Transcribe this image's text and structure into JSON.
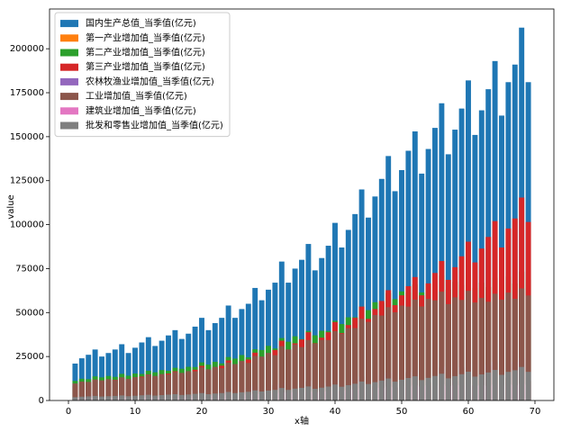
{
  "chart_data": {
    "type": "bar",
    "x_label": "x轴",
    "y_label": "value",
    "xlim": [
      -2.84,
      72.84
    ],
    "ylim": [
      0,
      222600
    ],
    "xticks": [
      0,
      10,
      20,
      30,
      40,
      50,
      60,
      70
    ],
    "yticks": [
      0,
      25000,
      50000,
      75000,
      100000,
      125000,
      150000,
      175000,
      200000
    ],
    "legend": "upper left",
    "x": [
      1,
      2,
      3,
      4,
      5,
      6,
      7,
      8,
      9,
      10,
      11,
      12,
      13,
      14,
      15,
      16,
      17,
      18,
      19,
      20,
      21,
      22,
      23,
      24,
      25,
      26,
      27,
      28,
      29,
      30,
      31,
      32,
      33,
      34,
      35,
      36,
      37,
      38,
      39,
      40,
      41,
      42,
      43,
      44,
      45,
      46,
      47,
      48,
      49,
      50,
      51,
      52,
      53,
      54,
      55,
      56,
      57,
      58,
      59,
      60,
      61,
      62,
      63,
      64,
      65,
      66,
      67,
      68,
      69
    ],
    "series": [
      {
        "name": "国内生产总值_当季值(亿元)",
        "color": "#1f77b4",
        "values": [
          21000,
          24000,
          26000,
          29000,
          25000,
          27000,
          29000,
          32000,
          27000,
          30000,
          33000,
          36000,
          31000,
          34000,
          37000,
          40000,
          35000,
          38000,
          42000,
          47000,
          40000,
          44000,
          47000,
          54000,
          47000,
          52000,
          55000,
          64000,
          57000,
          63000,
          67000,
          79000,
          67000,
          75000,
          80000,
          89000,
          74000,
          81000,
          88000,
          101000,
          87000,
          97000,
          106000,
          120000,
          104000,
          116000,
          126000,
          139000,
          119000,
          131000,
          142000,
          153000,
          129000,
          143000,
          155000,
          169000,
          140000,
          154000,
          166000,
          182000,
          151000,
          165000,
          177000,
          193000,
          162000,
          181000,
          191000,
          212000,
          181000
        ]
      },
      {
        "name": "第一产业增加值_当季值(亿元)",
        "color": "#ff7f0e",
        "values": [
          1470,
          1920,
          3380,
          3480,
          1750,
          2160,
          3770,
          3840,
          1890,
          2400,
          4290,
          4320,
          2170,
          2720,
          4810,
          4800,
          2450,
          3040,
          5460,
          5640,
          2800,
          3520,
          6110,
          6480,
          3290,
          4160,
          7150,
          7680,
          3990,
          5040,
          8710,
          9480,
          4690,
          6000,
          10400,
          10680,
          4440,
          5670,
          9680,
          11110,
          5220,
          6790,
          11660,
          13200,
          6240,
          8120,
          13860,
          15290,
          7140,
          9170,
          15620,
          16830,
          7740,
          10010,
          17050,
          18590,
          8400,
          10780,
          18260,
          20020,
          8460,
          11550,
          19470,
          21230,
          9070,
          12670,
          21010,
          23320,
          10860
        ]
      },
      {
        "name": "第二产业增加值_当季值(亿元)",
        "color": "#2ca02c",
        "values": [
          11130,
          12380,
          12120,
          13720,
          13150,
          13940,
          13430,
          15160,
          14110,
          15300,
          15110,
          16880,
          16030,
          17280,
          16890,
          18600,
          18050,
          19160,
          19040,
          21660,
          20400,
          21980,
          21090,
          24720,
          23810,
          25840,
          24550,
          29120,
          28710,
          31060,
          29590,
          35520,
          33410,
          36500,
          34900,
          39520,
          37060,
          39630,
          39520,
          45290,
          43480,
          47310,
          47340,
          53400,
          51360,
          55880,
          55540,
          61010,
          57660,
          62030,
          61380,
          65970,
          61460,
          66390,
          65450,
          71110,
          63000,
          67420,
          65740,
          71680,
          64040,
          67050,
          64530,
          69770,
          65930,
          70530,
          66490,
          73280,
          68640
        ]
      },
      {
        "name": "第三产业增加值_当季值(亿元)",
        "color": "#d62728",
        "values": [
          8400,
          9700,
          10500,
          11800,
          10100,
          10900,
          11800,
          13000,
          11000,
          12300,
          13600,
          14800,
          12800,
          14000,
          15300,
          16600,
          14500,
          15800,
          17500,
          19700,
          16800,
          18500,
          19800,
          22800,
          19900,
          22000,
          23300,
          27200,
          24300,
          26900,
          28700,
          34000,
          28900,
          32500,
          34700,
          38800,
          32500,
          35700,
          38800,
          44600,
          38300,
          42900,
          47000,
          53400,
          46400,
          52000,
          56600,
          62700,
          54200,
          59800,
          65000,
          70200,
          59800,
          66600,
          72500,
          79300,
          68600,
          75800,
          82000,
          90300,
          78500,
          86400,
          93000,
          102000,
          87000,
          97800,
          103500,
          115400,
          101500
        ]
      },
      {
        "name": "农林牧渔业增加值_当季值(亿元)",
        "color": "#9467bd",
        "values": [
          1530,
          2000,
          3520,
          3620,
          1820,
          2250,
          3920,
          3990,
          1970,
          2500,
          4460,
          4490,
          2260,
          2830,
          5000,
          4990,
          2550,
          3160,
          5680,
          5870,
          2910,
          3660,
          6350,
          6740,
          3420,
          4330,
          7440,
          7990,
          4150,
          5240,
          9060,
          9860,
          4880,
          6240,
          10820,
          11110,
          4620,
          5900,
          10070,
          11550,
          5430,
          7060,
          12130,
          13730,
          6490,
          8440,
          14410,
          15900,
          7430,
          9540,
          16240,
          17500,
          8050,
          10410,
          17730,
          19330,
          8740,
          11210,
          18990,
          20820,
          8800,
          12010,
          20250,
          22080,
          9430,
          13180,
          21850,
          24250,
          11290
        ]
      },
      {
        "name": "工业增加值_当季值(亿元)",
        "color": "#8c564b",
        "values": [
          9680,
          10770,
          10540,
          11940,
          11440,
          12130,
          11680,
          13190,
          12280,
          13310,
          13150,
          14690,
          13950,
          15030,
          14690,
          16180,
          15700,
          16670,
          16560,
          18840,
          17750,
          19120,
          18350,
          21510,
          20710,
          22480,
          21360,
          25330,
          24980,
          27020,
          25740,
          30900,
          29070,
          31760,
          30360,
          34380,
          32240,
          34480,
          34380,
          39400,
          37830,
          41160,
          41190,
          46460,
          44680,
          48620,
          48320,
          53080,
          50160,
          53970,
          53400,
          57390,
          53470,
          57760,
          56940,
          61870,
          54810,
          58660,
          57190,
          62360,
          55710,
          58330,
          56140,
          60700,
          57360,
          61360,
          57850,
          63750,
          59720
        ]
      },
      {
        "name": "建筑业增加值_当季值(亿元)",
        "color": "#e377c2",
        "values": [
          1450,
          1610,
          1580,
          1780,
          1710,
          1810,
          1750,
          1970,
          1830,
          1990,
          1960,
          2190,
          2080,
          2250,
          2200,
          2420,
          2350,
          2490,
          2480,
          2820,
          2650,
          2860,
          2740,
          3210,
          3100,
          3360,
          3190,
          3790,
          3730,
          4040,
          3850,
          4620,
          4340,
          4740,
          4540,
          5140,
          4820,
          5150,
          5140,
          5890,
          5650,
          6150,
          6150,
          6940,
          6680,
          7260,
          7220,
          7930,
          7500,
          8060,
          7980,
          8580,
          7990,
          8630,
          8510,
          9240,
          8190,
          8760,
          8550,
          9320,
          8330,
          8720,
          8390,
          9070,
          8570,
          9170,
          8640,
          9530,
          8920
        ]
      },
      {
        "name": "批发和零售业增加值_当季值(亿元)",
        "color": "#7f7f7f",
        "values": [
          1890,
          2160,
          2340,
          2610,
          2250,
          2430,
          2610,
          2880,
          2430,
          2700,
          2970,
          3240,
          2790,
          3060,
          3330,
          3600,
          3150,
          3420,
          3780,
          4230,
          3600,
          3960,
          4230,
          4860,
          4230,
          4680,
          4950,
          5760,
          5130,
          5670,
          6030,
          7110,
          6030,
          6750,
          7200,
          8010,
          6660,
          7290,
          7920,
          9090,
          7830,
          8730,
          9540,
          10800,
          9360,
          10440,
          11340,
          12510,
          10710,
          11790,
          12780,
          13770,
          11610,
          12870,
          13950,
          15210,
          12600,
          13860,
          14940,
          16380,
          13590,
          14850,
          15930,
          17370,
          14580,
          16290,
          17190,
          19080,
          16290
        ]
      }
    ]
  }
}
